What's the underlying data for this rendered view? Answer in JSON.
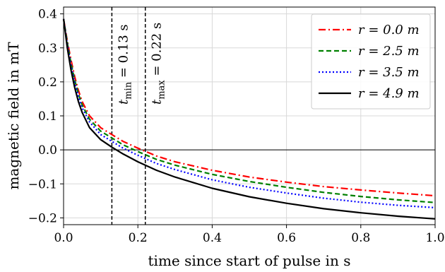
{
  "chart_data": {
    "type": "line",
    "xlabel": "time since start of pulse in s",
    "ylabel": "magnetic field in mT",
    "xlim": [
      0.0,
      1.0
    ],
    "ylim": [
      -0.22,
      0.42
    ],
    "x_ticks": [
      0.0,
      0.2,
      0.4,
      0.6,
      0.8,
      1.0
    ],
    "x_tick_labels": [
      "0.0",
      "0.2",
      "0.4",
      "0.6",
      "0.8",
      "1.0"
    ],
    "y_ticks": [
      -0.2,
      -0.1,
      0.0,
      0.1,
      0.2,
      0.3,
      0.4
    ],
    "y_tick_labels": [
      "−0.2",
      "−0.1",
      "0.0",
      "0.1",
      "0.2",
      "0.3",
      "0.4"
    ],
    "grid": true,
    "legend_position": "top-right",
    "zero_line": true,
    "x": [
      0.0,
      0.01,
      0.02,
      0.03,
      0.04,
      0.05,
      0.07,
      0.1,
      0.13,
      0.16,
      0.2,
      0.25,
      0.3,
      0.4,
      0.5,
      0.6,
      0.7,
      0.8,
      0.9,
      1.0
    ],
    "series": [
      {
        "name": "r = 0.0 m",
        "color": "#ff0000",
        "dash": "dashdot",
        "values": [
          0.385,
          0.32,
          0.265,
          0.215,
          0.175,
          0.142,
          0.1,
          0.065,
          0.045,
          0.025,
          0.005,
          -0.018,
          -0.035,
          -0.06,
          -0.08,
          -0.095,
          -0.108,
          -0.118,
          -0.127,
          -0.135
        ]
      },
      {
        "name": "r = 2.5 m",
        "color": "#008000",
        "dash": "dashed",
        "values": [
          0.385,
          0.315,
          0.255,
          0.205,
          0.165,
          0.132,
          0.09,
          0.055,
          0.035,
          0.015,
          -0.005,
          -0.028,
          -0.045,
          -0.072,
          -0.093,
          -0.11,
          -0.125,
          -0.137,
          -0.147,
          -0.155
        ]
      },
      {
        "name": "r = 3.5 m",
        "color": "#0000ff",
        "dash": "dotted",
        "values": [
          0.385,
          0.31,
          0.248,
          0.198,
          0.157,
          0.124,
          0.082,
          0.045,
          0.025,
          0.005,
          -0.016,
          -0.04,
          -0.058,
          -0.088,
          -0.11,
          -0.127,
          -0.142,
          -0.154,
          -0.163,
          -0.17
        ]
      },
      {
        "name": "r = 4.9 m",
        "color": "#000000",
        "dash": "solid",
        "values": [
          0.385,
          0.3,
          0.235,
          0.183,
          0.142,
          0.11,
          0.065,
          0.03,
          0.008,
          -0.012,
          -0.035,
          -0.06,
          -0.08,
          -0.113,
          -0.138,
          -0.157,
          -0.173,
          -0.185,
          -0.195,
          -0.203
        ]
      }
    ],
    "vlines": [
      {
        "x": 0.13,
        "label": "t_min = 0.13 s",
        "base": "t",
        "sub": "min",
        "rest": " = 0.13 s"
      },
      {
        "x": 0.22,
        "label": "t_max = 0.22 s",
        "base": "t",
        "sub": "max",
        "rest": " = 0.22 s"
      }
    ]
  }
}
